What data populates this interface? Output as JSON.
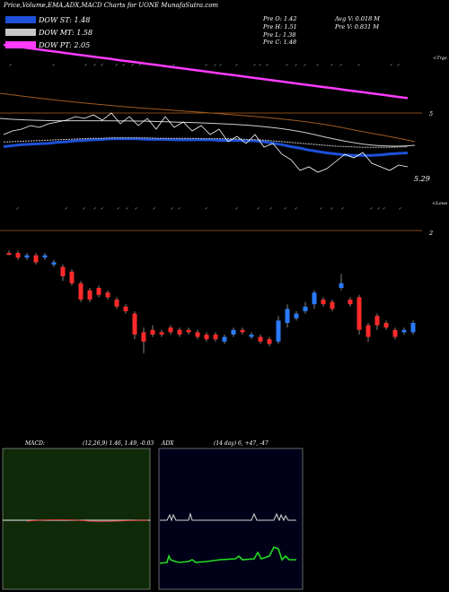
{
  "title": "Price,Volume,EMA,ADX,MACD Charts for UONE MunafaSutra.com",
  "legend": {
    "st": "DOW ST: 1.48",
    "mt": "DOW MT: 1.58",
    "pt": "DOW PT: 2.05",
    "colors": {
      "st": "#1e50d8",
      "mt": "#c8c8c8",
      "pt": "#ff3cff"
    }
  },
  "quote": {
    "open": "Pre O: 1.42",
    "high": "Pre H: 1.51",
    "low": "Pre L: 1.38",
    "close": "Pre C: 1.48",
    "avg_vol": "Avg V: 0.018 M",
    "prev_vol": "Pre V: 0.831 M"
  },
  "price_panel": {
    "right_labels": {
      "top": "<Trgs",
      "level": "5",
      "ema_value": "5.29",
      "bottom": "<Lows"
    }
  },
  "candle_panel": {
    "right_label": "2"
  },
  "macd": {
    "label": "MACD:",
    "params": "(12,26,9) 1.46, 1.49, -0.03"
  },
  "adx": {
    "label": "ADX",
    "params": "(14 day) 6, +47, -47"
  },
  "chart_data": {
    "type": "line",
    "title": "Price,Volume,EMA,ADX,MACD Charts for UONE MunafaSutra.com",
    "series": [
      {
        "name": "DOW ST: 1.48",
        "color": "#1e50d8",
        "values": [
          0.62,
          0.6,
          0.58,
          0.57,
          0.56,
          0.55,
          0.53,
          0.52,
          0.5,
          0.49,
          0.48,
          0.47,
          0.46,
          0.46,
          0.46,
          0.46,
          0.47,
          0.47,
          0.47,
          0.48,
          0.48,
          0.48,
          0.48,
          0.48,
          0.49,
          0.49,
          0.49,
          0.5,
          0.5,
          0.52,
          0.55,
          0.58,
          0.62,
          0.65,
          0.69,
          0.72,
          0.75,
          0.77,
          0.79,
          0.8,
          0.8,
          0.8,
          0.79,
          0.77,
          0.76,
          0.75
        ]
      },
      {
        "name": "DOW MT: 1.58",
        "color": "#c8c8c8",
        "values": [
          0.58,
          0.57,
          0.56,
          0.55,
          0.54,
          0.53,
          0.52,
          0.51,
          0.5,
          0.49,
          0.48,
          0.48,
          0.47,
          0.47,
          0.47,
          0.47,
          0.47,
          0.48,
          0.48,
          0.48,
          0.48,
          0.48,
          0.49,
          0.49,
          0.49,
          0.49,
          0.5,
          0.51,
          0.52,
          0.53,
          0.55,
          0.57,
          0.59,
          0.61,
          0.63,
          0.65,
          0.67,
          0.69,
          0.7,
          0.71,
          0.72,
          0.72,
          0.72,
          0.72,
          0.71,
          0.71
        ]
      },
      {
        "name": "DOW PT: 2.05",
        "color": "#ff3cff",
        "values": [
          0.0,
          0.02,
          0.04,
          0.06,
          0.08,
          0.1,
          0.12,
          0.14,
          0.16,
          0.18,
          0.2,
          0.22,
          0.24,
          0.26,
          0.28,
          0.3,
          0.32,
          0.34,
          0.36,
          0.38,
          0.4,
          0.42,
          0.44,
          0.46,
          0.48,
          0.5,
          0.52,
          0.54,
          0.56,
          0.58,
          0.6,
          0.62,
          0.64,
          0.66,
          0.68,
          0.7,
          0.72,
          0.74,
          0.76,
          0.78,
          0.8,
          0.82,
          0.84,
          0.86,
          0.88,
          0.9
        ]
      }
    ],
    "candles": [
      {
        "o": 2.0,
        "c": 2.0,
        "h": 2.1,
        "l": 1.9
      },
      {
        "o": 2.0,
        "c": 2.2,
        "h": 2.3,
        "l": 1.9
      },
      {
        "o": 2.2,
        "c": 2.1,
        "h": 2.3,
        "l": 2.0
      },
      {
        "o": 2.1,
        "c": 2.4,
        "h": 2.5,
        "l": 2.0
      },
      {
        "o": 2.2,
        "c": 2.1,
        "h": 2.3,
        "l": 2.0
      },
      {
        "o": 2.5,
        "c": 2.4,
        "h": 2.6,
        "l": 2.3
      },
      {
        "o": 2.6,
        "c": 3.0,
        "h": 3.2,
        "l": 2.5
      },
      {
        "o": 2.8,
        "c": 3.3,
        "h": 3.4,
        "l": 2.7
      },
      {
        "o": 3.3,
        "c": 4.0,
        "h": 4.1,
        "l": 3.2
      },
      {
        "o": 3.6,
        "c": 4.0,
        "h": 4.1,
        "l": 3.5
      },
      {
        "o": 3.5,
        "c": 3.8,
        "h": 3.9,
        "l": 3.4
      },
      {
        "o": 3.7,
        "c": 3.9,
        "h": 4.0,
        "l": 3.6
      },
      {
        "o": 4.0,
        "c": 4.3,
        "h": 4.4,
        "l": 3.9
      },
      {
        "o": 4.3,
        "c": 4.5,
        "h": 4.6,
        "l": 4.2
      },
      {
        "o": 4.6,
        "c": 5.5,
        "h": 5.7,
        "l": 4.5
      },
      {
        "o": 5.4,
        "c": 5.8,
        "h": 6.3,
        "l": 5.2
      },
      {
        "o": 5.3,
        "c": 5.5,
        "h": 5.6,
        "l": 5.1
      },
      {
        "o": 5.4,
        "c": 5.5,
        "h": 5.6,
        "l": 5.3
      },
      {
        "o": 5.2,
        "c": 5.4,
        "h": 5.5,
        "l": 5.1
      },
      {
        "o": 5.3,
        "c": 5.5,
        "h": 5.6,
        "l": 5.2
      },
      {
        "o": 5.3,
        "c": 5.4,
        "h": 5.5,
        "l": 5.2
      },
      {
        "o": 5.4,
        "c": 5.6,
        "h": 5.7,
        "l": 5.3
      },
      {
        "o": 5.5,
        "c": 5.7,
        "h": 5.8,
        "l": 5.4
      },
      {
        "o": 5.5,
        "c": 5.7,
        "h": 5.8,
        "l": 5.4
      },
      {
        "o": 5.8,
        "c": 5.6,
        "h": 5.9,
        "l": 5.5
      },
      {
        "o": 5.5,
        "c": 5.3,
        "h": 5.6,
        "l": 5.2
      },
      {
        "o": 5.3,
        "c": 5.4,
        "h": 5.5,
        "l": 5.2
      },
      {
        "o": 5.6,
        "c": 5.5,
        "h": 5.7,
        "l": 5.4
      },
      {
        "o": 5.6,
        "c": 5.8,
        "h": 5.9,
        "l": 5.5
      },
      {
        "o": 5.7,
        "c": 5.9,
        "h": 6.0,
        "l": 5.6
      },
      {
        "o": 5.8,
        "c": 4.9,
        "h": 5.9,
        "l": 4.7
      },
      {
        "o": 5.0,
        "c": 4.4,
        "h": 5.2,
        "l": 4.2
      },
      {
        "o": 4.8,
        "c": 4.6,
        "h": 4.9,
        "l": 4.5
      },
      {
        "o": 4.5,
        "c": 4.3,
        "h": 4.6,
        "l": 4.1
      },
      {
        "o": 4.2,
        "c": 3.7,
        "h": 4.4,
        "l": 3.6
      },
      {
        "o": 4.0,
        "c": 4.2,
        "h": 4.3,
        "l": 3.9
      },
      {
        "o": 4.1,
        "c": 4.4,
        "h": 4.5,
        "l": 4.0
      },
      {
        "o": 3.5,
        "c": 3.3,
        "h": 3.6,
        "l": 2.9
      },
      {
        "o": 4.0,
        "c": 4.2,
        "h": 4.3,
        "l": 3.9
      },
      {
        "o": 3.9,
        "c": 5.3,
        "h": 5.5,
        "l": 3.8
      },
      {
        "o": 5.1,
        "c": 5.6,
        "h": 5.8,
        "l": 5.0
      },
      {
        "o": 4.7,
        "c": 5.1,
        "h": 5.3,
        "l": 4.6
      },
      {
        "o": 5.0,
        "c": 5.2,
        "h": 5.3,
        "l": 4.9
      },
      {
        "o": 5.3,
        "c": 5.6,
        "h": 5.7,
        "l": 5.2
      },
      {
        "o": 5.4,
        "c": 5.3,
        "h": 5.5,
        "l": 5.2
      },
      {
        "o": 5.4,
        "c": 5.0,
        "h": 5.5,
        "l": 4.9
      }
    ]
  }
}
